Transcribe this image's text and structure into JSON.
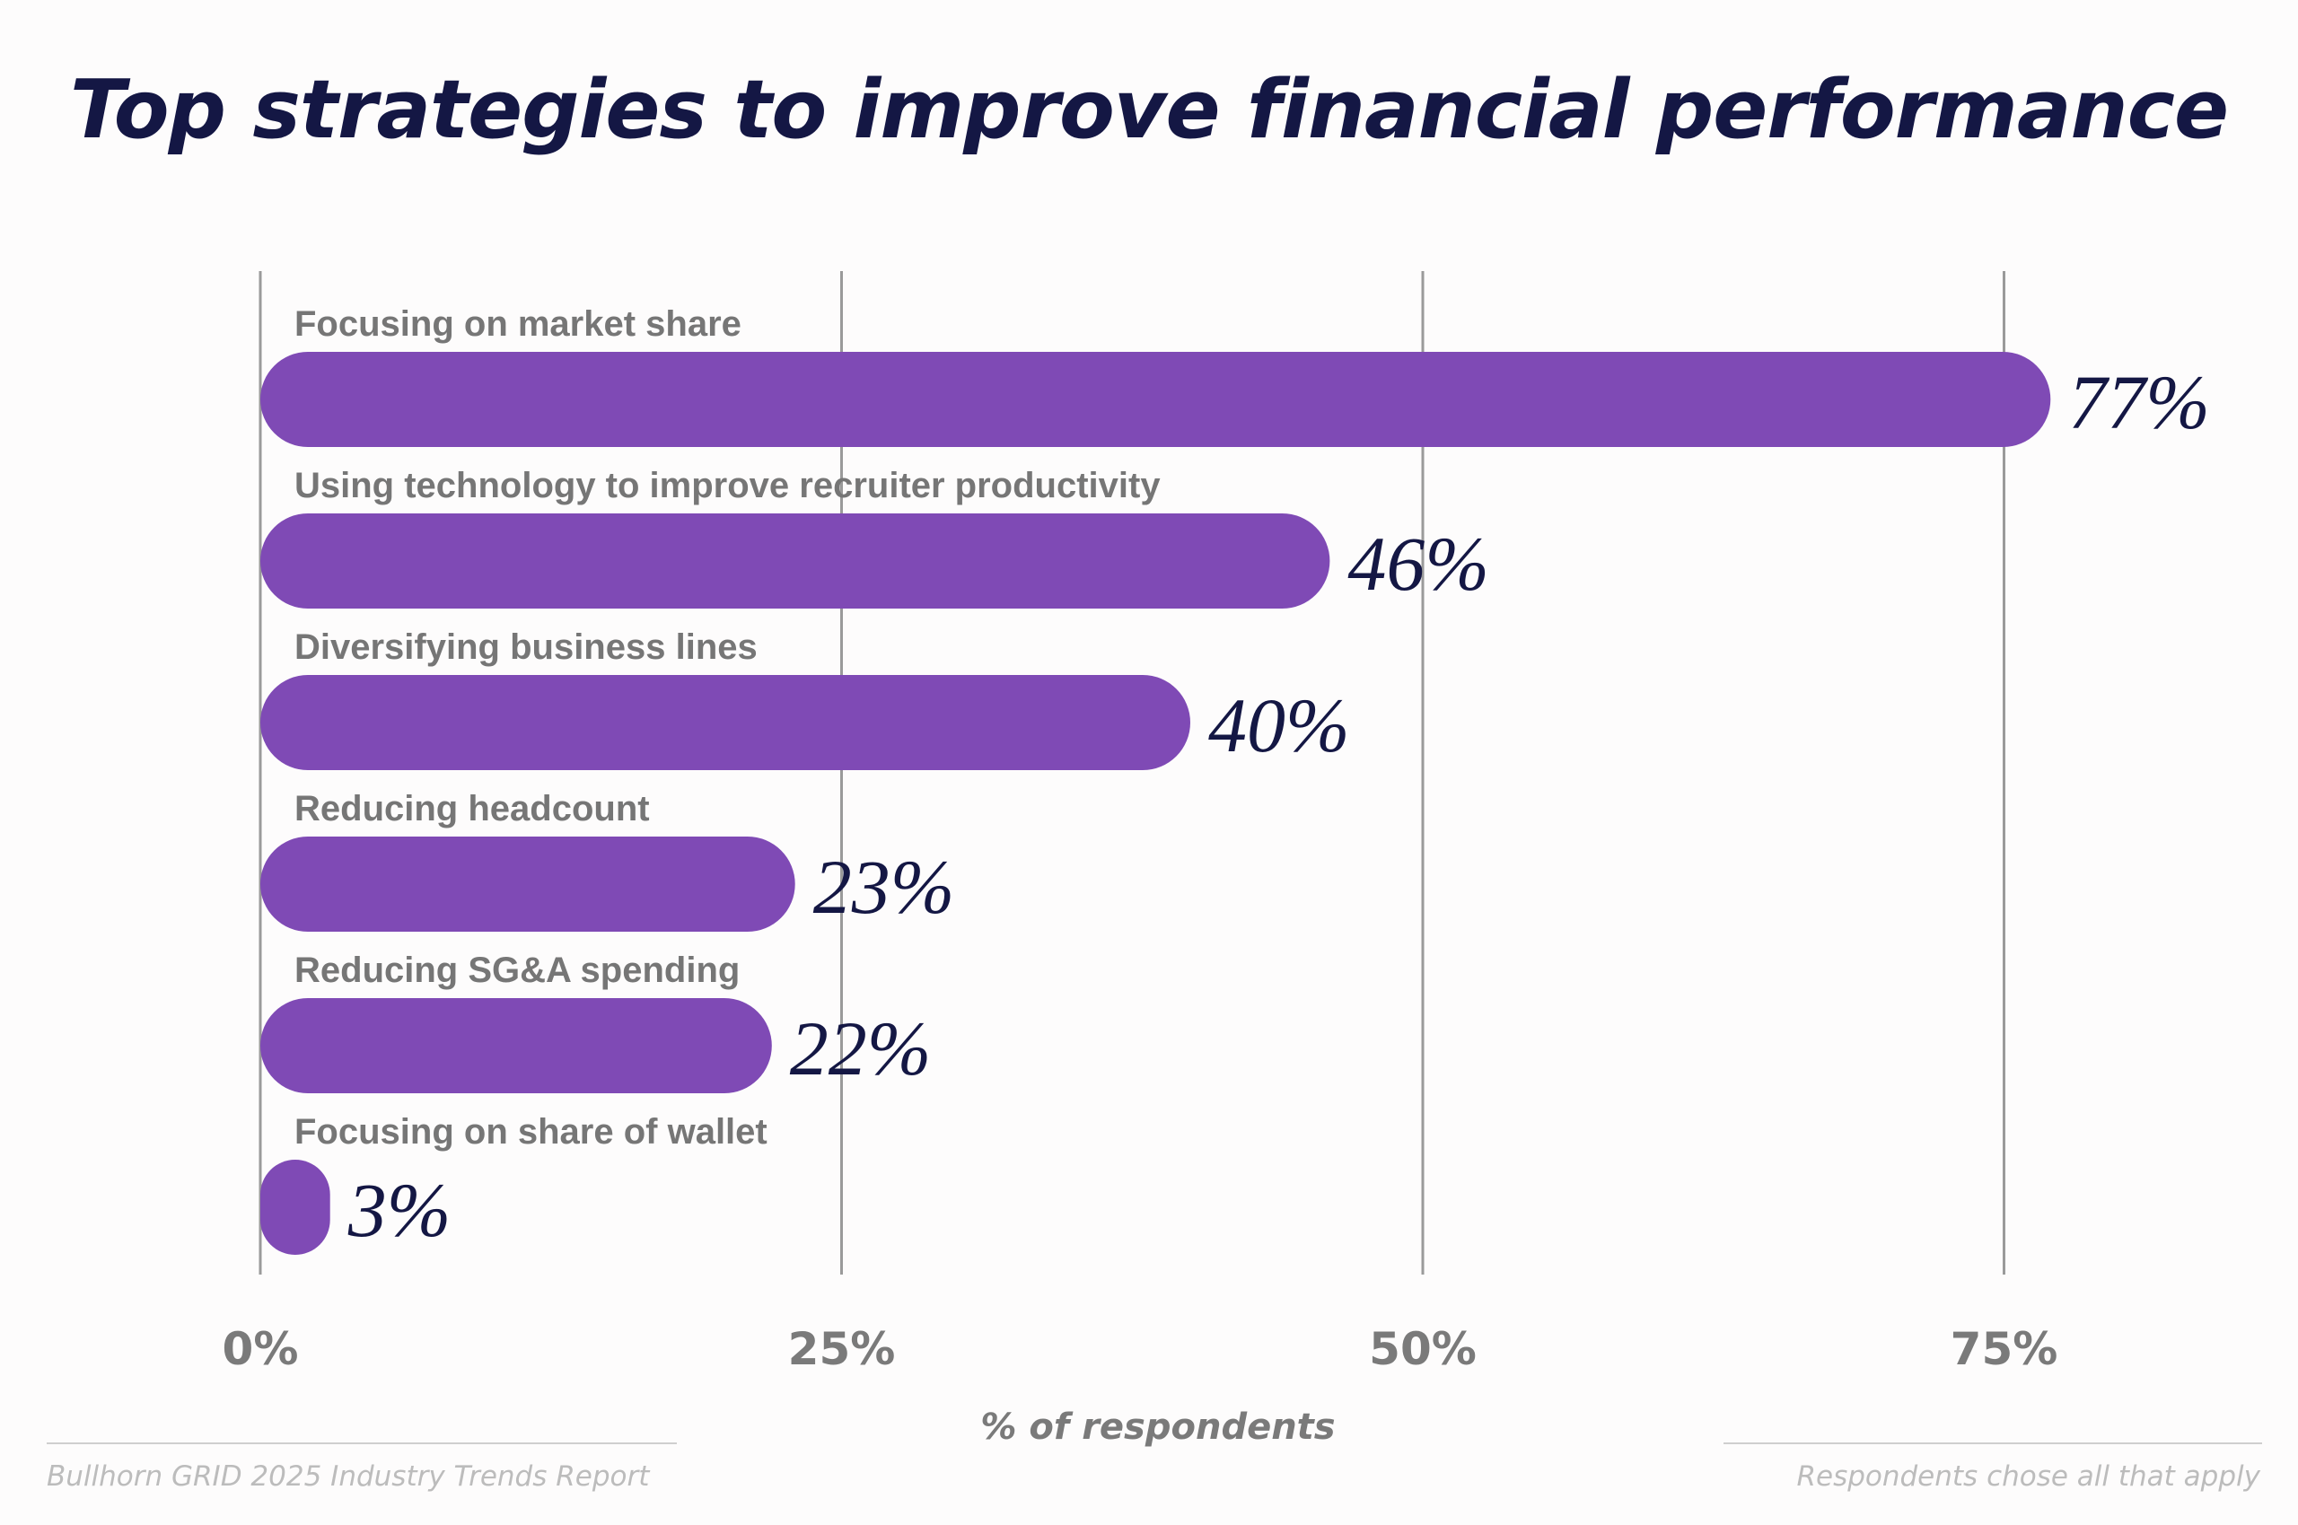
{
  "chart_data": {
    "type": "bar",
    "orientation": "horizontal",
    "title": "Top strategies to improve financial performance",
    "categories": [
      "Focusing on market share",
      "Using technology to improve recruiter productivity",
      "Diversifying business lines",
      "Reducing headcount",
      "Reducing SG&A spending",
      "Focusing on share of wallet"
    ],
    "values": [
      77,
      46,
      40,
      23,
      22,
      3
    ],
    "data_labels": [
      "77%",
      "46%",
      "40%",
      "23%",
      "22%",
      "3%"
    ],
    "xlabel": "% of respondents",
    "ylabel": "",
    "xlim": [
      0,
      75
    ],
    "xticks": [
      "0%",
      "25%",
      "50%",
      "75%"
    ],
    "grid": true,
    "legend": "none",
    "colors": {
      "bar": "#7f4ab5",
      "title": "#141744",
      "data_label": "#141744",
      "category_label": "#767676",
      "grid": "#9a9a9a",
      "tick_label": "#7a7a7a",
      "footer": "#bcbcbc"
    }
  },
  "footer": {
    "source": "Bullhorn GRID 2025 Industry Trends Report",
    "note": "Respondents chose all that apply"
  }
}
